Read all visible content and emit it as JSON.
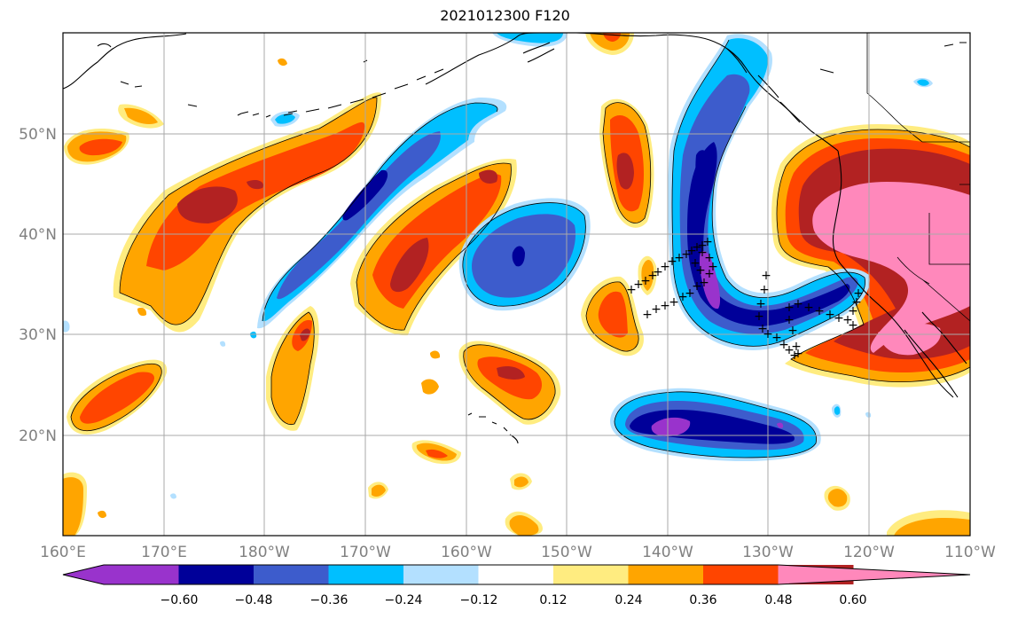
{
  "map": {
    "title": "2021012300 F120",
    "lon_labels": [
      "160°E",
      "170°E",
      "180°W",
      "170°W",
      "160°W",
      "150°W",
      "140°W",
      "130°W",
      "120°W",
      "110°W"
    ],
    "lat_labels": [
      "50°N",
      "40°N",
      "30°N",
      "20°N"
    ],
    "lon_range": [
      160,
      250
    ],
    "lat_range": [
      10,
      60
    ],
    "gridlines": true,
    "marker_symbol": "+",
    "marker_color": "#000000"
  },
  "colorbar": {
    "tick_labels": [
      "−0.60",
      "−0.48",
      "−0.36",
      "−0.24",
      "−0.12",
      "0.12",
      "0.24",
      "0.36",
      "0.48",
      "0.60"
    ],
    "colors": [
      "#9933cc",
      "#000099",
      "#3d5ccc",
      "#00bfff",
      "#b3e0ff",
      "#ffffff",
      "#ffec80",
      "#ffa500",
      "#ff4500",
      "#b22222",
      "#ff88bb"
    ],
    "extend": "both"
  },
  "chart_data": {
    "type": "heatmap",
    "levels": [
      -0.72,
      -0.6,
      -0.48,
      -0.36,
      -0.24,
      -0.12,
      0.12,
      0.24,
      0.36,
      0.48,
      0.6,
      0.72
    ]
  }
}
